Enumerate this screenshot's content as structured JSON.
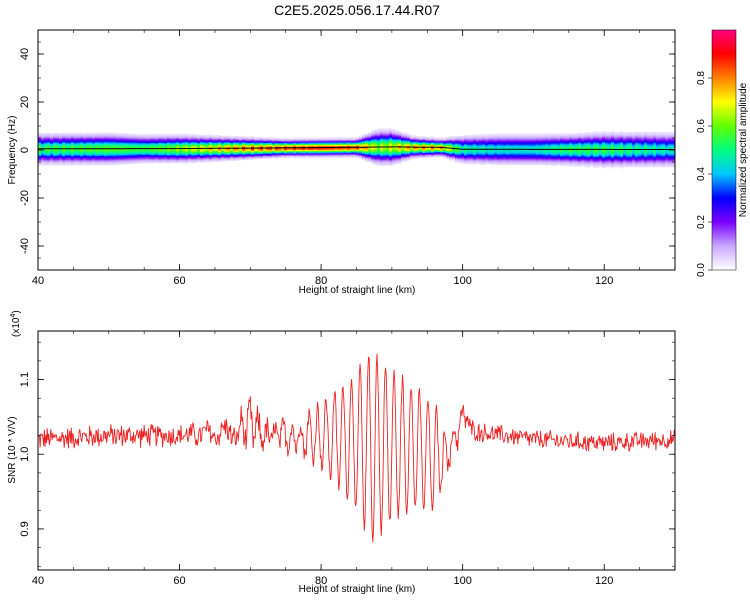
{
  "title": "C2E5.2025.056.17.44.R07",
  "chart_data": [
    {
      "type": "heatmap",
      "xlabel": "Height of straight line (km)",
      "ylabel": "Frequency (Hz)",
      "xlim": [
        40,
        130
      ],
      "ylim": [
        -50,
        50
      ],
      "xticks": [
        40,
        60,
        80,
        100,
        120
      ],
      "yticks": [
        -40,
        -20,
        0,
        20,
        40
      ],
      "grid": false,
      "band": {
        "center_frequency_hz": [
          [
            40,
            0.5
          ],
          [
            60,
            0.6
          ],
          [
            80,
            1.0
          ],
          [
            90,
            1.3
          ],
          [
            97,
            1.1
          ],
          [
            100,
            0.3
          ],
          [
            130,
            0.2
          ]
        ],
        "profile_columns": [
          "height_km",
          "half_width_hz",
          "peak_amplitude"
        ],
        "profile": [
          [
            40,
            4.5,
            0.6
          ],
          [
            50,
            4.5,
            0.65
          ],
          [
            55,
            4.0,
            0.62
          ],
          [
            60,
            4.0,
            0.7
          ],
          [
            65,
            3.5,
            0.8
          ],
          [
            70,
            3.0,
            0.9
          ],
          [
            75,
            2.5,
            0.95
          ],
          [
            80,
            2.5,
            1.0
          ],
          [
            85,
            2.5,
            0.95
          ],
          [
            88,
            5.0,
            0.7
          ],
          [
            90,
            5.0,
            0.75
          ],
          [
            93,
            3.0,
            0.85
          ],
          [
            97,
            2.5,
            0.85
          ],
          [
            100,
            4.0,
            0.55
          ],
          [
            105,
            4.5,
            0.5
          ],
          [
            110,
            4.5,
            0.5
          ],
          [
            115,
            4.5,
            0.6
          ],
          [
            120,
            5.0,
            0.6
          ],
          [
            125,
            5.0,
            0.55
          ],
          [
            130,
            5.0,
            0.5
          ]
        ]
      },
      "colorbar": {
        "label": "Normalized spectral amplitude",
        "range": [
          0,
          1
        ],
        "ticks": [
          "0.0",
          "0.2",
          "0.4",
          "0.6",
          "0.8"
        ],
        "tick_values": [
          0.0,
          0.2,
          0.4,
          0.6,
          0.8
        ],
        "colormap": [
          "#ffffff",
          "#c8a8ff",
          "#7a00ff",
          "#0000ff",
          "#00c8ff",
          "#00ff80",
          "#60ff00",
          "#ffff00",
          "#ff8000",
          "#ff0000",
          "#ff0080"
        ]
      }
    },
    {
      "type": "line",
      "xlabel": "Height of straight line (km)",
      "ylabel": "SNR (10 * V/V)",
      "scale_label": "(x10",
      "scale_exponent": "4",
      "xlim": [
        40,
        130
      ],
      "ylim": [
        0.845,
        1.165
      ],
      "xticks": [
        40,
        60,
        80,
        100,
        120
      ],
      "yticks": [
        "0.9",
        "1.0",
        "1.1"
      ],
      "ytick_values": [
        0.9,
        1.0,
        1.1
      ],
      "grid": false,
      "series": [
        {
          "color": "#ee2222",
          "x_start": 40,
          "x_step": 0.1,
          "envelope_columns": [
            "height_km",
            "baseline",
            "noise_amplitude",
            "oscillation_amplitude",
            "oscillation_period_km"
          ],
          "envelope": [
            [
              40,
              1.02,
              0.018,
              0.0,
              1.0
            ],
            [
              50,
              1.025,
              0.018,
              0.0,
              1.0
            ],
            [
              60,
              1.025,
              0.018,
              0.0,
              1.0
            ],
            [
              68,
              1.03,
              0.02,
              0.01,
              1.2
            ],
            [
              70,
              1.04,
              0.025,
              0.025,
              1.2
            ],
            [
              72,
              1.025,
              0.02,
              0.01,
              1.2
            ],
            [
              76,
              1.025,
              0.02,
              0.015,
              1.2
            ],
            [
              80,
              1.025,
              0.015,
              0.04,
              1.2
            ],
            [
              84,
              1.02,
              0.01,
              0.08,
              1.2
            ],
            [
              87,
              1.01,
              0.01,
              0.13,
              1.2
            ],
            [
              90,
              1.01,
              0.01,
              0.1,
              1.2
            ],
            [
              93,
              1.01,
              0.01,
              0.08,
              1.2
            ],
            [
              96,
              0.995,
              0.01,
              0.07,
              1.2
            ],
            [
              98,
              1.0,
              0.015,
              0.02,
              1.2
            ],
            [
              100,
              1.05,
              0.02,
              0.01,
              1.2
            ],
            [
              102,
              1.03,
              0.015,
              0.0,
              1.0
            ],
            [
              110,
              1.02,
              0.015,
              0.0,
              1.0
            ],
            [
              120,
              1.015,
              0.015,
              0.0,
              1.0
            ],
            [
              130,
              1.02,
              0.015,
              0.0,
              1.0
            ]
          ]
        }
      ]
    }
  ]
}
